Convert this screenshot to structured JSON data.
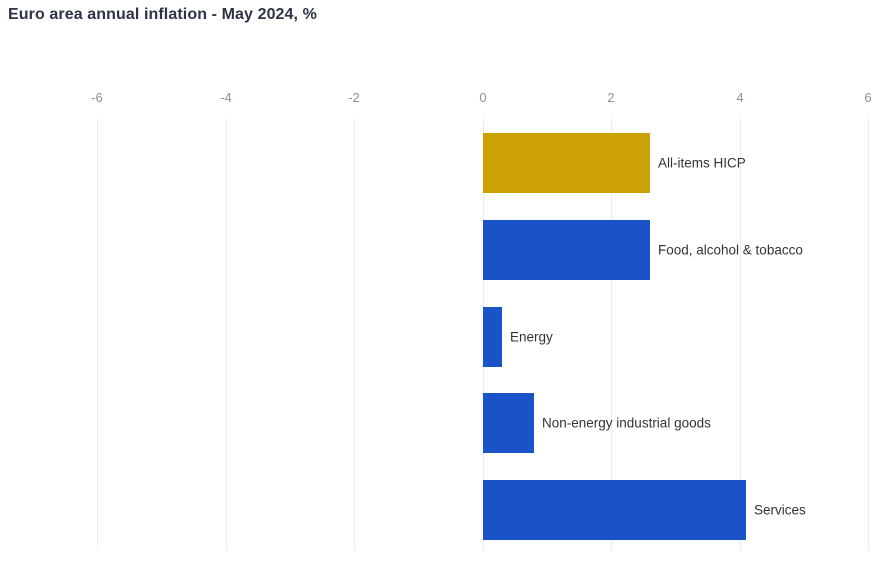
{
  "title": "Euro area annual inflation - May 2024, %",
  "colors": {
    "highlight_bar": "#cba104",
    "default_bar": "#1a52c8",
    "grid": "#e8edf3",
    "tick_label": "#8c929c",
    "title_text": "#2e3445",
    "bar_label_text": "#333333",
    "background": "#ffffff"
  },
  "chart_data": {
    "type": "bar",
    "orientation": "horizontal",
    "title": "Euro area annual inflation - May 2024, %",
    "unit": "%",
    "categories": [
      "All-items HICP",
      "Food, alcohol & tobacco",
      "Energy",
      "Non-energy industrial goods",
      "Services"
    ],
    "values": [
      2.6,
      2.6,
      0.3,
      0.8,
      4.1
    ],
    "bar_colors": [
      "#cba104",
      "#1a52c8",
      "#1a52c8",
      "#1a52c8",
      "#1a52c8"
    ],
    "xlim": [
      -6,
      6
    ],
    "xticks": [
      -6,
      -4,
      -2,
      0,
      2,
      4,
      6
    ],
    "grid": true,
    "legend": "none",
    "tick_position": "top",
    "label_position": "right-of-bar"
  }
}
